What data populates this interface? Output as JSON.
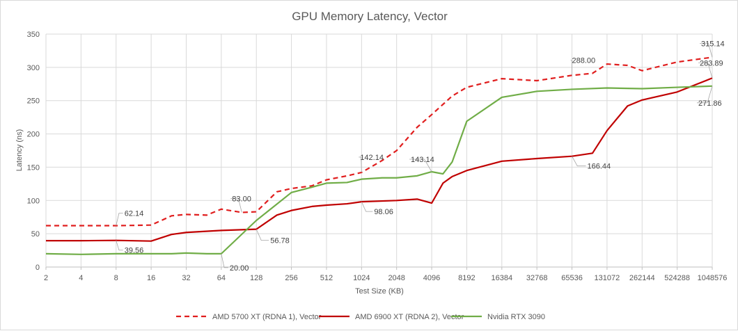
{
  "chart_data": {
    "type": "line",
    "title": "GPU Memory Latency, Vector",
    "xlabel": "Test Size (KB)",
    "ylabel": "Latency (ns)",
    "ylim": [
      0,
      350
    ],
    "yticks": [
      0,
      50,
      100,
      150,
      200,
      250,
      300,
      350
    ],
    "x_ticks": [
      "2",
      "4",
      "8",
      "16",
      "32",
      "64",
      "128",
      "256",
      "512",
      "1024",
      "2048",
      "4096",
      "8192",
      "16384",
      "32768",
      "65536",
      "131072",
      "262144",
      "524288",
      "1048576"
    ],
    "x_scale": "log2",
    "grid": true,
    "legend_position": "bottom",
    "colors": {
      "amd5700": "#e01e1e",
      "amd6900": "#c00000",
      "rtx3090": "#70ad47"
    },
    "series": [
      {
        "name": "AMD 5700 XT (RDNA 1), Vector",
        "style": "dashed",
        "color": "#e01e1e",
        "points": [
          [
            2,
            62.14
          ],
          [
            4,
            62.14
          ],
          [
            8,
            62.14
          ],
          [
            16,
            63
          ],
          [
            24,
            77
          ],
          [
            32,
            79
          ],
          [
            48,
            78
          ],
          [
            64,
            87
          ],
          [
            96,
            82
          ],
          [
            128,
            83
          ],
          [
            192,
            113
          ],
          [
            256,
            118
          ],
          [
            384,
            122
          ],
          [
            512,
            131
          ],
          [
            768,
            137
          ],
          [
            1024,
            142.14
          ],
          [
            1536,
            160
          ],
          [
            2048,
            175
          ],
          [
            3072,
            210
          ],
          [
            4096,
            229
          ],
          [
            6144,
            257
          ],
          [
            8192,
            270
          ],
          [
            16384,
            283
          ],
          [
            32768,
            280
          ],
          [
            65536,
            288
          ],
          [
            98304,
            291
          ],
          [
            131072,
            305
          ],
          [
            196608,
            303
          ],
          [
            262144,
            295
          ],
          [
            524288,
            308
          ],
          [
            1048576,
            315.14
          ]
        ]
      },
      {
        "name": "AMD 6900 XT (RDNA 2), Vector",
        "style": "solid",
        "color": "#c00000",
        "points": [
          [
            2,
            39.56
          ],
          [
            4,
            39.56
          ],
          [
            8,
            40
          ],
          [
            16,
            39
          ],
          [
            24,
            49
          ],
          [
            32,
            52
          ],
          [
            64,
            55
          ],
          [
            128,
            56.78
          ],
          [
            192,
            78
          ],
          [
            256,
            85
          ],
          [
            384,
            91
          ],
          [
            512,
            93
          ],
          [
            768,
            95
          ],
          [
            1024,
            98.06
          ],
          [
            2048,
            100
          ],
          [
            3072,
            102
          ],
          [
            4096,
            96
          ],
          [
            5120,
            126
          ],
          [
            6144,
            136
          ],
          [
            8192,
            145
          ],
          [
            16384,
            159
          ],
          [
            32768,
            163
          ],
          [
            65536,
            166.44
          ],
          [
            98304,
            171
          ],
          [
            131072,
            205
          ],
          [
            196608,
            242
          ],
          [
            262144,
            251
          ],
          [
            524288,
            263
          ],
          [
            1048576,
            283.89
          ]
        ]
      },
      {
        "name": "Nvidia RTX 3090",
        "style": "solid",
        "color": "#70ad47",
        "points": [
          [
            2,
            20
          ],
          [
            4,
            19
          ],
          [
            8,
            20
          ],
          [
            16,
            20
          ],
          [
            24,
            20
          ],
          [
            32,
            21
          ],
          [
            48,
            20
          ],
          [
            64,
            20.0
          ],
          [
            128,
            70
          ],
          [
            256,
            112
          ],
          [
            384,
            120
          ],
          [
            512,
            126
          ],
          [
            768,
            127
          ],
          [
            1024,
            132
          ],
          [
            1536,
            134
          ],
          [
            2048,
            134
          ],
          [
            3072,
            137
          ],
          [
            4096,
            143.14
          ],
          [
            5120,
            140
          ],
          [
            6144,
            158
          ],
          [
            8192,
            219
          ],
          [
            16384,
            255
          ],
          [
            32768,
            264
          ],
          [
            65536,
            267
          ],
          [
            131072,
            269
          ],
          [
            262144,
            268
          ],
          [
            524288,
            270
          ],
          [
            1048576,
            271.86
          ]
        ]
      }
    ],
    "annotations": [
      {
        "text": "62.14",
        "x": 8,
        "y": 62.14
      },
      {
        "text": "39.56",
        "x": 8,
        "y": 40
      },
      {
        "text": "83.00",
        "x": 96,
        "y": 82
      },
      {
        "text": "56.78",
        "x": 128,
        "y": 56.78
      },
      {
        "text": "20.00",
        "x": 64,
        "y": 20
      },
      {
        "text": "142.14",
        "x": 1024,
        "y": 142.14
      },
      {
        "text": "98.06",
        "x": 1024,
        "y": 98.06
      },
      {
        "text": "143.14",
        "x": 4096,
        "y": 143.14
      },
      {
        "text": "288.00",
        "x": 65536,
        "y": 288
      },
      {
        "text": "166.44",
        "x": 65536,
        "y": 166.44
      },
      {
        "text": "315.14",
        "x": 1048576,
        "y": 315.14
      },
      {
        "text": "283.89",
        "x": 1048576,
        "y": 283.89
      },
      {
        "text": "271.86",
        "x": 1048576,
        "y": 271.86
      }
    ]
  }
}
